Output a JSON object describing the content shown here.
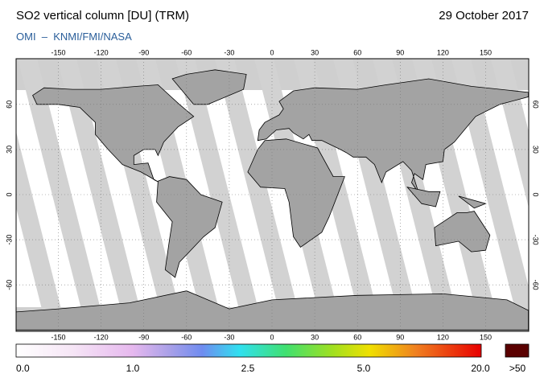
{
  "header": {
    "title": "SO2 vertical column [DU] (TRM)",
    "date": "29 October 2017",
    "source": "OMI  –  KNMI/FMI/NASA"
  },
  "map": {
    "lon_ticks": [
      -150,
      -120,
      -90,
      -60,
      -30,
      0,
      30,
      60,
      90,
      120,
      150
    ],
    "lat_ticks": [
      60,
      30,
      0,
      -30,
      -60
    ]
  },
  "colorbar": {
    "labels": [
      "0.0",
      "1.0",
      "2.5",
      "5.0",
      "20.0"
    ],
    "overflow_label": ">50"
  }
}
